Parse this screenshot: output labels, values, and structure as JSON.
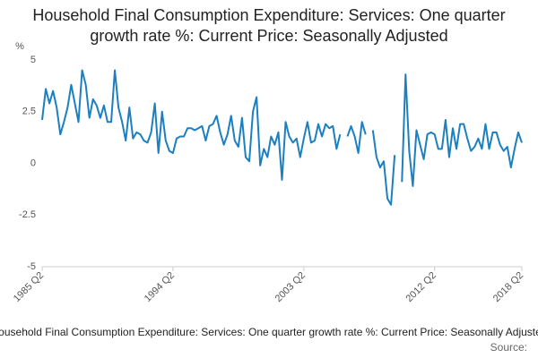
{
  "chart_data": {
    "type": "line",
    "title": "Household Final Consumption Expenditure: Services: One quarter growth rate %: Current Price: Seasonally Adjusted",
    "y_label": "%",
    "caption": "Household Final Consumption Expenditure: Services: One quarter growth rate %: Current Price: Seasonally Adjusted",
    "source": "Source:",
    "categories": [
      "1985 Q2",
      null,
      null,
      null,
      null,
      null,
      null,
      null,
      null,
      null,
      null,
      null,
      null,
      null,
      null,
      null,
      null,
      null,
      null,
      null,
      null,
      null,
      null,
      null,
      null,
      null,
      null,
      null,
      null,
      null,
      null,
      null,
      null,
      null,
      null,
      null,
      "1994 Q2",
      null,
      null,
      null,
      null,
      null,
      null,
      null,
      null,
      null,
      null,
      null,
      null,
      null,
      null,
      null,
      null,
      null,
      null,
      null,
      null,
      null,
      null,
      null,
      null,
      null,
      null,
      null,
      null,
      null,
      null,
      null,
      null,
      null,
      null,
      null,
      "2003 Q2",
      null,
      null,
      null,
      null,
      null,
      null,
      null,
      null,
      null,
      null,
      null,
      null,
      null,
      null,
      null,
      null,
      null,
      null,
      null,
      null,
      null,
      null,
      null,
      null,
      null,
      null,
      null,
      null,
      null,
      null,
      null,
      null,
      null,
      null,
      null,
      "2012 Q2",
      null,
      null,
      null,
      null,
      null,
      null,
      null,
      null,
      null,
      null,
      null,
      null,
      null,
      null,
      null,
      null,
      null,
      null,
      null,
      null,
      null,
      null,
      null,
      "2018 Q2"
    ],
    "series": [
      {
        "color": "#1b7fc0",
        "values": [
          2.1,
          3.6,
          2.9,
          3.5,
          2.7,
          1.4,
          2.0,
          2.7,
          3.8,
          2.9,
          2.0,
          4.5,
          3.8,
          2.2,
          3.1,
          2.8,
          2.2,
          2.8,
          2.0,
          2.0,
          4.5,
          2.7,
          2.0,
          1.1,
          2.7,
          1.2,
          1.5,
          1.4,
          1.1,
          1.0,
          1.5,
          2.9,
          0.5,
          2.5,
          1.1,
          0.6,
          0.5,
          1.2,
          1.3,
          1.3,
          1.7,
          1.7,
          1.6,
          1.7,
          1.8,
          1.1,
          1.8,
          1.9,
          2.3,
          1.5,
          0.9,
          1.4,
          2.3,
          1.1,
          0.8,
          2.2,
          0.3,
          0.1,
          2.5,
          3.2,
          -0.1,
          0.7,
          0.3,
          1.3,
          0.9,
          1.5,
          -0.8,
          2.0,
          1.3,
          1.0,
          1.2,
          0.3,
          1.2,
          2.0,
          1.0,
          1.1,
          1.9,
          1.3,
          1.9,
          1.7,
          1.8,
          0.7,
          1.4,
          null,
          1.3,
          1.8,
          1.3,
          0.5,
          2.0,
          1.4,
          null,
          1.6,
          0.3,
          -0.2,
          0.1,
          -1.7,
          -2.0,
          0.4,
          null,
          -0.9,
          4.3,
          0.6,
          -1.1,
          1.6,
          0.9,
          0.2,
          1.4,
          1.5,
          1.4,
          0.7,
          0.7,
          2.1,
          0.3,
          1.7,
          0.7,
          1.9,
          1.9,
          1.2,
          0.6,
          0.8,
          1.2,
          0.7,
          1.9,
          0.7,
          1.5,
          1.5,
          0.9,
          0.6,
          0.8,
          -0.2,
          0.7,
          1.5,
          1.0
        ]
      }
    ],
    "ylim": [
      -5,
      5
    ],
    "yticks": [
      5,
      2.5,
      0,
      -2.5,
      -5
    ],
    "grid": false
  }
}
